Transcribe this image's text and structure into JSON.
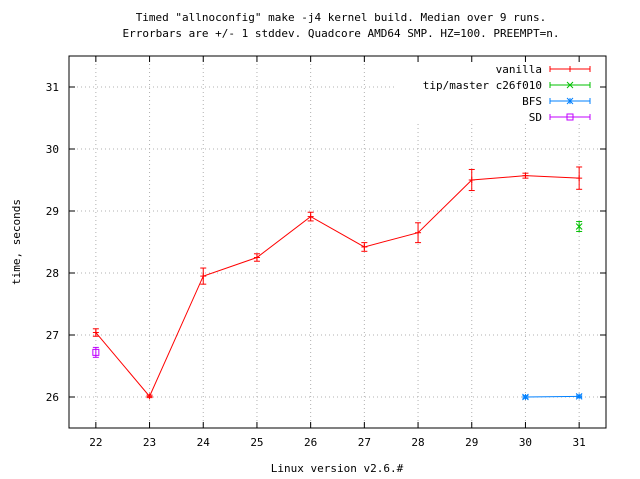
{
  "chart_data": {
    "type": "line",
    "title_lines": [
      "Timed \"allnoconfig\" make -j4 kernel build. Median over 9 runs.",
      "Errorbars are +/- 1 stddev. Quadcore AMD64 SMP. HZ=100. PREEMPT=n."
    ],
    "xlabel": "Linux version v2.6.#",
    "ylabel": "time, seconds",
    "xlim": [
      21.5,
      31.5
    ],
    "ylim": [
      25.5,
      31.5
    ],
    "x_ticks": [
      22,
      23,
      24,
      25,
      26,
      27,
      28,
      29,
      30,
      31
    ],
    "y_ticks": [
      26,
      27,
      28,
      29,
      30,
      31
    ],
    "grid": true,
    "legend_position": "top-right",
    "series": [
      {
        "name": "vanilla",
        "color": "#ff0000",
        "marker": "plus",
        "points": [
          {
            "x": 22,
            "y": 27.04,
            "err": 0.06
          },
          {
            "x": 23,
            "y": 26.01,
            "err": 0.02
          },
          {
            "x": 24,
            "y": 27.95,
            "err": 0.13
          },
          {
            "x": 25,
            "y": 28.25,
            "err": 0.06
          },
          {
            "x": 26,
            "y": 28.91,
            "err": 0.07
          },
          {
            "x": 27,
            "y": 28.42,
            "err": 0.07
          },
          {
            "x": 28,
            "y": 28.65,
            "err": 0.16
          },
          {
            "x": 29,
            "y": 29.5,
            "err": 0.17
          },
          {
            "x": 30,
            "y": 29.57,
            "err": 0.04
          },
          {
            "x": 31,
            "y": 29.53,
            "err": 0.18
          }
        ]
      },
      {
        "name": "tip/master c26f010",
        "color": "#00c000",
        "marker": "cross",
        "points": [
          {
            "x": 31,
            "y": 28.75,
            "err": 0.08
          }
        ]
      },
      {
        "name": "BFS",
        "color": "#0080ff",
        "marker": "star",
        "points": [
          {
            "x": 30,
            "y": 26.0,
            "err": 0.02
          },
          {
            "x": 31,
            "y": 26.01,
            "err": 0.02
          }
        ]
      },
      {
        "name": "SD",
        "color": "#c000ff",
        "marker": "square",
        "points": [
          {
            "x": 22,
            "y": 26.72,
            "err": 0.08
          }
        ]
      }
    ]
  }
}
